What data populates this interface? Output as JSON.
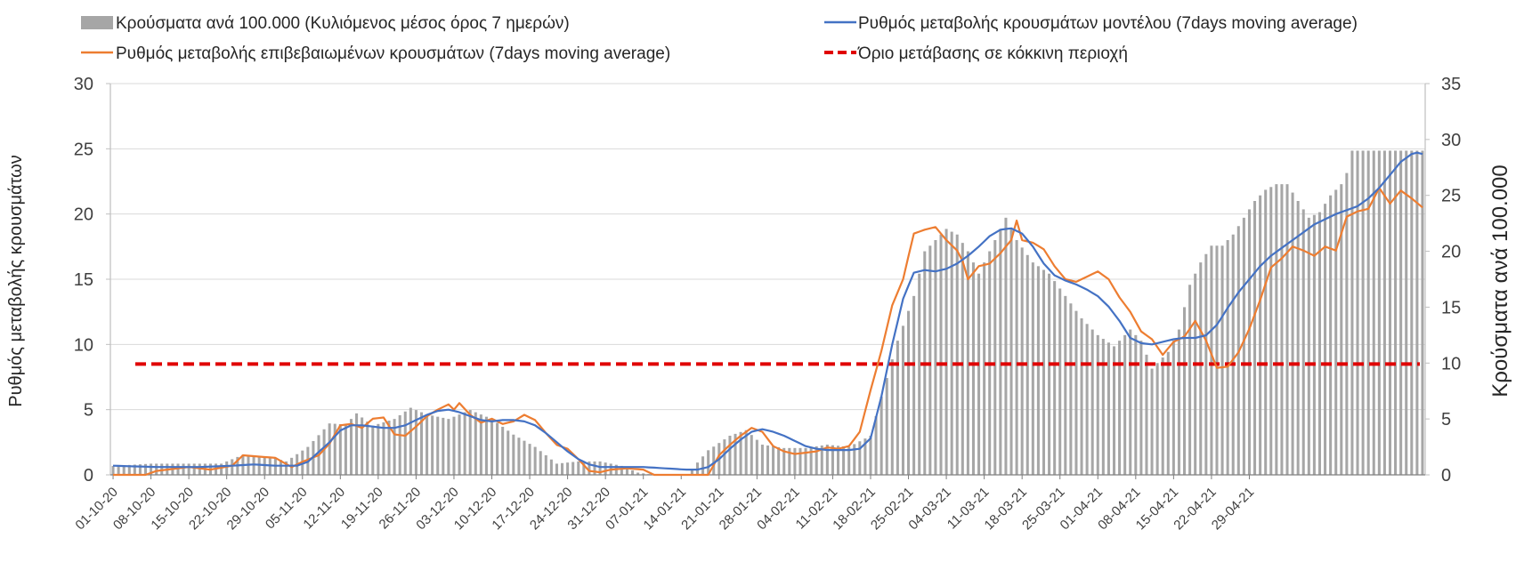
{
  "legend": {
    "bars": "Κρούσματα ανά 100.000 (Κυλιόμενος μέσος όρος 7 ημερών)",
    "model": "Ρυθμός μεταβολής κρουσμάτων μοντέλου (7days moving average)",
    "confirmed": "Ρυθμός μεταβολής επιβεβαιωμένων κρουσμάτων (7days moving average)",
    "threshold": "Όριο μετάβασης σε κόκκινη περιοχή"
  },
  "colors": {
    "bars": "#a6a6a6",
    "model": "#4472c4",
    "confirmed": "#ed7d31",
    "threshold": "#e00000",
    "grid": "#d9d9d9",
    "axis": "#bfbfbf"
  },
  "chart_data": {
    "type": "bar+line",
    "ylabel_left": "Ρυθμός μεταβολής κρουσμάτων",
    "ylabel_right": "Κρούσματα ανά 100.000",
    "ylim_left": [
      0,
      30
    ],
    "ylim_right": [
      0,
      35
    ],
    "yticks_left": [
      "0",
      "5",
      "10",
      "15",
      "20",
      "25",
      "30"
    ],
    "yticks_right": [
      "0",
      "5",
      "10",
      "15",
      "20",
      "25",
      "30",
      "35"
    ],
    "grid": true,
    "legend_position": "top",
    "start_date": "01-10-20",
    "days": 215,
    "x_tick_labels": [
      "01-10-20",
      "08-10-20",
      "15-10-20",
      "22-10-20",
      "29-10-20",
      "05-11-20",
      "12-11-20",
      "19-11-20",
      "26-11-20",
      "03-12-20",
      "10-12-20",
      "17-12-20",
      "24-12-20",
      "31-12-20",
      "07-01-21",
      "14-01-21",
      "21-01-21",
      "28-01-21",
      "04-02-21",
      "11-02-21",
      "18-02-21",
      "25-02-21",
      "04-03-21",
      "11-03-21",
      "18-03-21",
      "25-03-21",
      "01-04-21",
      "08-04-21",
      "15-04-21",
      "22-04-21",
      "29-04-21"
    ],
    "threshold": 8.5,
    "bars_keyframes": [
      [
        0,
        0.8
      ],
      [
        7,
        1
      ],
      [
        14,
        1
      ],
      [
        20,
        1
      ],
      [
        24,
        1.8
      ],
      [
        29,
        1.6
      ],
      [
        32,
        1.2
      ],
      [
        36,
        2.5
      ],
      [
        40,
        4.6
      ],
      [
        43,
        4.5
      ],
      [
        45,
        5.5
      ],
      [
        48,
        4.4
      ],
      [
        52,
        5
      ],
      [
        55,
        6
      ],
      [
        58,
        5.4
      ],
      [
        62,
        5
      ],
      [
        66,
        5.8
      ],
      [
        70,
        5
      ],
      [
        74,
        3.6
      ],
      [
        78,
        2.5
      ],
      [
        82,
        1
      ],
      [
        86,
        1.2
      ],
      [
        90,
        1.2
      ],
      [
        94,
        0.8
      ],
      [
        97,
        0.2
      ],
      [
        100,
        0
      ],
      [
        106,
        0
      ],
      [
        110,
        2.2
      ],
      [
        114,
        3.5
      ],
      [
        117,
        4
      ],
      [
        120,
        2.7
      ],
      [
        124,
        2.4
      ],
      [
        128,
        2.4
      ],
      [
        132,
        2.7
      ],
      [
        136,
        2.5
      ],
      [
        140,
        3.5
      ],
      [
        142,
        7
      ],
      [
        145,
        12
      ],
      [
        148,
        16
      ],
      [
        150,
        20
      ],
      [
        152,
        21
      ],
      [
        154,
        22
      ],
      [
        156,
        21.5
      ],
      [
        158,
        20
      ],
      [
        160,
        18
      ],
      [
        163,
        21
      ],
      [
        165,
        23
      ],
      [
        167,
        21
      ],
      [
        170,
        19
      ],
      [
        173,
        18
      ],
      [
        176,
        16
      ],
      [
        179,
        14
      ],
      [
        182,
        12.5
      ],
      [
        185,
        11.5
      ],
      [
        188,
        13
      ],
      [
        190,
        12
      ],
      [
        192,
        9.5
      ],
      [
        195,
        11
      ],
      [
        197,
        13
      ],
      [
        199,
        17
      ],
      [
        201,
        19
      ],
      [
        203,
        20.5
      ],
      [
        205,
        20.5
      ],
      [
        207,
        21.5
      ],
      [
        209,
        23
      ],
      [
        211,
        24.5
      ],
      [
        213,
        25.5
      ],
      [
        215,
        26
      ],
      [
        217,
        26
      ],
      [
        219,
        24.5
      ],
      [
        221,
        23
      ],
      [
        223,
        23.5
      ],
      [
        225,
        25
      ],
      [
        226,
        25.5
      ],
      [
        227,
        26
      ],
      [
        228,
        27
      ],
      [
        229,
        29
      ]
    ],
    "confirmed_keyframes": [
      [
        0,
        0
      ],
      [
        6,
        0
      ],
      [
        8,
        0.3
      ],
      [
        14,
        0.6
      ],
      [
        18,
        0.4
      ],
      [
        22,
        0.7
      ],
      [
        24,
        1.5
      ],
      [
        27,
        1.4
      ],
      [
        30,
        1.3
      ],
      [
        33,
        0.6
      ],
      [
        35,
        1
      ],
      [
        38,
        1.5
      ],
      [
        40,
        2.4
      ],
      [
        42,
        3.8
      ],
      [
        44,
        3.9
      ],
      [
        46,
        3.6
      ],
      [
        48,
        4.3
      ],
      [
        50,
        4.4
      ],
      [
        52,
        3.1
      ],
      [
        54,
        3
      ],
      [
        56,
        3.7
      ],
      [
        58,
        4.5
      ],
      [
        60,
        5
      ],
      [
        62,
        5.4
      ],
      [
        63,
        5
      ],
      [
        64,
        5.5
      ],
      [
        66,
        4.6
      ],
      [
        68,
        4
      ],
      [
        70,
        4.3
      ],
      [
        72,
        3.9
      ],
      [
        74,
        4.1
      ],
      [
        76,
        4.6
      ],
      [
        78,
        4.2
      ],
      [
        80,
        3.2
      ],
      [
        82,
        2.3
      ],
      [
        84,
        2
      ],
      [
        86,
        1.2
      ],
      [
        88,
        0.3
      ],
      [
        90,
        0.2
      ],
      [
        92,
        0.4
      ],
      [
        95,
        0.5
      ],
      [
        98,
        0.4
      ],
      [
        100,
        0
      ],
      [
        108,
        0
      ],
      [
        110,
        0
      ],
      [
        112,
        1.5
      ],
      [
        114,
        2.3
      ],
      [
        116,
        3
      ],
      [
        118,
        3.6
      ],
      [
        120,
        3.3
      ],
      [
        122,
        2.2
      ],
      [
        124,
        1.8
      ],
      [
        126,
        1.6
      ],
      [
        128,
        1.7
      ],
      [
        130,
        1.8
      ],
      [
        132,
        2.1
      ],
      [
        134,
        2
      ],
      [
        136,
        2.2
      ],
      [
        138,
        3.3
      ],
      [
        140,
        6.5
      ],
      [
        142,
        9.5
      ],
      [
        144,
        13
      ],
      [
        146,
        15
      ],
      [
        148,
        18.5
      ],
      [
        150,
        18.8
      ],
      [
        152,
        19
      ],
      [
        154,
        18
      ],
      [
        156,
        17.2
      ],
      [
        157,
        16.4
      ],
      [
        158,
        15
      ],
      [
        160,
        16
      ],
      [
        162,
        16.2
      ],
      [
        164,
        17
      ],
      [
        166,
        18
      ],
      [
        167,
        19.5
      ],
      [
        168,
        18
      ],
      [
        170,
        17.8
      ],
      [
        172,
        17.3
      ],
      [
        174,
        16
      ],
      [
        176,
        15
      ],
      [
        178,
        14.8
      ],
      [
        180,
        15.2
      ],
      [
        182,
        15.6
      ],
      [
        184,
        15
      ],
      [
        186,
        13.6
      ],
      [
        188,
        12.5
      ],
      [
        190,
        11
      ],
      [
        192,
        10.4
      ],
      [
        194,
        9.2
      ],
      [
        196,
        10.2
      ],
      [
        198,
        10.6
      ],
      [
        200,
        11.8
      ],
      [
        202,
        10.3
      ],
      [
        204,
        8.2
      ],
      [
        206,
        8.3
      ],
      [
        208,
        9.4
      ],
      [
        210,
        11.2
      ],
      [
        212,
        13.4
      ],
      [
        214,
        15.9
      ],
      [
        216,
        16.6
      ],
      [
        218,
        17.5
      ],
      [
        220,
        17.2
      ],
      [
        222,
        16.8
      ],
      [
        224,
        17.5
      ],
      [
        226,
        17.2
      ],
      [
        228,
        19.8
      ],
      [
        230,
        20.2
      ],
      [
        232,
        20.4
      ],
      [
        234,
        22
      ],
      [
        236,
        20.8
      ],
      [
        238,
        21.8
      ],
      [
        240,
        21.2
      ],
      [
        242,
        20.5
      ]
    ],
    "model_keyframes": [
      [
        0,
        0.7
      ],
      [
        8,
        0.6
      ],
      [
        16,
        0.6
      ],
      [
        22,
        0.7
      ],
      [
        26,
        0.8
      ],
      [
        30,
        0.7
      ],
      [
        34,
        0.7
      ],
      [
        36,
        1
      ],
      [
        40,
        2.5
      ],
      [
        42,
        3.4
      ],
      [
        44,
        3.8
      ],
      [
        46,
        3.8
      ],
      [
        48,
        3.7
      ],
      [
        50,
        3.6
      ],
      [
        52,
        3.6
      ],
      [
        54,
        3.8
      ],
      [
        56,
        4.2
      ],
      [
        58,
        4.6
      ],
      [
        60,
        4.9
      ],
      [
        62,
        5
      ],
      [
        64,
        4.8
      ],
      [
        66,
        4.5
      ],
      [
        68,
        4.2
      ],
      [
        70,
        4.1
      ],
      [
        72,
        4.2
      ],
      [
        74,
        4.2
      ],
      [
        76,
        4.1
      ],
      [
        78,
        3.8
      ],
      [
        80,
        3.2
      ],
      [
        82,
        2.5
      ],
      [
        84,
        1.8
      ],
      [
        86,
        1.2
      ],
      [
        88,
        0.8
      ],
      [
        90,
        0.6
      ],
      [
        94,
        0.6
      ],
      [
        98,
        0.6
      ],
      [
        102,
        0.5
      ],
      [
        106,
        0.4
      ],
      [
        108,
        0.4
      ],
      [
        110,
        0.6
      ],
      [
        112,
        1.2
      ],
      [
        114,
        2
      ],
      [
        116,
        2.7
      ],
      [
        118,
        3.3
      ],
      [
        120,
        3.5
      ],
      [
        122,
        3.3
      ],
      [
        124,
        3
      ],
      [
        126,
        2.6
      ],
      [
        128,
        2.2
      ],
      [
        130,
        2
      ],
      [
        132,
        1.9
      ],
      [
        134,
        1.9
      ],
      [
        136,
        1.9
      ],
      [
        138,
        2
      ],
      [
        140,
        2.8
      ],
      [
        142,
        6
      ],
      [
        144,
        10
      ],
      [
        146,
        13.5
      ],
      [
        148,
        15.5
      ],
      [
        150,
        15.7
      ],
      [
        152,
        15.6
      ],
      [
        154,
        15.8
      ],
      [
        156,
        16.2
      ],
      [
        158,
        16.8
      ],
      [
        160,
        17.5
      ],
      [
        162,
        18.3
      ],
      [
        164,
        18.8
      ],
      [
        166,
        18.9
      ],
      [
        168,
        18.5
      ],
      [
        170,
        17.5
      ],
      [
        172,
        16.2
      ],
      [
        174,
        15.3
      ],
      [
        176,
        14.9
      ],
      [
        178,
        14.6
      ],
      [
        180,
        14.2
      ],
      [
        182,
        13.7
      ],
      [
        184,
        12.9
      ],
      [
        186,
        11.8
      ],
      [
        188,
        10.5
      ],
      [
        190,
        10.1
      ],
      [
        192,
        10
      ],
      [
        194,
        10.2
      ],
      [
        196,
        10.4
      ],
      [
        198,
        10.5
      ],
      [
        200,
        10.5
      ],
      [
        202,
        10.7
      ],
      [
        204,
        11.5
      ],
      [
        206,
        12.8
      ],
      [
        208,
        14
      ],
      [
        210,
        15
      ],
      [
        212,
        16
      ],
      [
        214,
        16.8
      ],
      [
        216,
        17.4
      ],
      [
        218,
        18
      ],
      [
        220,
        18.6
      ],
      [
        222,
        19.2
      ],
      [
        224,
        19.6
      ],
      [
        226,
        20
      ],
      [
        228,
        20.3
      ],
      [
        230,
        20.6
      ],
      [
        232,
        21.2
      ],
      [
        234,
        22
      ],
      [
        236,
        23
      ],
      [
        238,
        24
      ],
      [
        240,
        24.6
      ],
      [
        241,
        24.7
      ],
      [
        242,
        24.6
      ]
    ]
  }
}
